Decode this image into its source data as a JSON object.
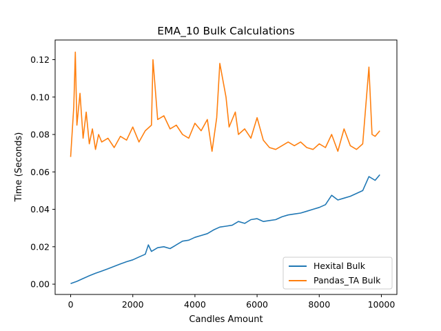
{
  "chart_data": {
    "type": "line",
    "title": "EMA_10 Bulk Calculations",
    "xlabel": "Candles Amount",
    "ylabel": "Time (Seconds)",
    "xlim": [
      -500,
      10500
    ],
    "ylim": [
      -0.0055,
      0.1305
    ],
    "xticks": [
      0,
      2000,
      4000,
      6000,
      8000,
      10000
    ],
    "xtick_labels": [
      "0",
      "2000",
      "4000",
      "6000",
      "8000",
      "10000"
    ],
    "yticks": [
      0.0,
      0.02,
      0.04,
      0.06,
      0.08,
      0.1,
      0.12
    ],
    "ytick_labels": [
      "0.00",
      "0.02",
      "0.04",
      "0.06",
      "0.08",
      "0.10",
      "0.12"
    ],
    "grid": false,
    "legend_position": "lower-right",
    "series": [
      {
        "name": "Hexital Bulk",
        "color": "#1f77b4",
        "x": [
          0,
          200,
          400,
          600,
          800,
          1000,
          1200,
          1400,
          1600,
          1800,
          2000,
          2200,
          2400,
          2500,
          2600,
          2800,
          3000,
          3200,
          3400,
          3600,
          3800,
          4000,
          4200,
          4400,
          4600,
          4800,
          5000,
          5200,
          5400,
          5600,
          5800,
          6000,
          6200,
          6400,
          6600,
          6800,
          7000,
          7200,
          7400,
          7600,
          7800,
          8000,
          8200,
          8400,
          8600,
          8800,
          9000,
          9200,
          9400,
          9600,
          9800,
          9950
        ],
        "y": [
          0.0003,
          0.0015,
          0.003,
          0.0045,
          0.0058,
          0.007,
          0.0082,
          0.0095,
          0.0108,
          0.012,
          0.013,
          0.0145,
          0.016,
          0.021,
          0.0175,
          0.0195,
          0.02,
          0.019,
          0.021,
          0.023,
          0.0235,
          0.025,
          0.026,
          0.027,
          0.029,
          0.0305,
          0.031,
          0.0315,
          0.0335,
          0.0325,
          0.0345,
          0.035,
          0.0335,
          0.034,
          0.0345,
          0.036,
          0.037,
          0.0375,
          0.038,
          0.039,
          0.04,
          0.041,
          0.0425,
          0.0475,
          0.045,
          0.046,
          0.047,
          0.0485,
          0.05,
          0.0575,
          0.0555,
          0.0585
        ]
      },
      {
        "name": "Pandas_TA Bulk",
        "color": "#ff7f0e",
        "x": [
          0,
          100,
          150,
          200,
          300,
          400,
          500,
          600,
          700,
          800,
          900,
          1000,
          1200,
          1400,
          1600,
          1800,
          2000,
          2200,
          2400,
          2600,
          2650,
          2800,
          3000,
          3200,
          3400,
          3600,
          3800,
          4000,
          4200,
          4400,
          4550,
          4700,
          4800,
          5000,
          5100,
          5300,
          5400,
          5600,
          5800,
          6000,
          6200,
          6400,
          6600,
          6800,
          7000,
          7200,
          7400,
          7600,
          7800,
          8000,
          8200,
          8400,
          8600,
          8800,
          9000,
          9200,
          9400,
          9600,
          9700,
          9800,
          9950
        ],
        "y": [
          0.068,
          0.095,
          0.124,
          0.085,
          0.102,
          0.078,
          0.092,
          0.075,
          0.083,
          0.072,
          0.08,
          0.076,
          0.078,
          0.073,
          0.079,
          0.077,
          0.084,
          0.076,
          0.082,
          0.085,
          0.12,
          0.088,
          0.09,
          0.083,
          0.085,
          0.08,
          0.078,
          0.086,
          0.082,
          0.088,
          0.071,
          0.089,
          0.118,
          0.1,
          0.084,
          0.092,
          0.08,
          0.083,
          0.078,
          0.089,
          0.077,
          0.073,
          0.072,
          0.074,
          0.076,
          0.074,
          0.076,
          0.073,
          0.072,
          0.075,
          0.073,
          0.08,
          0.071,
          0.083,
          0.074,
          0.072,
          0.075,
          0.116,
          0.08,
          0.079,
          0.082
        ]
      }
    ]
  }
}
